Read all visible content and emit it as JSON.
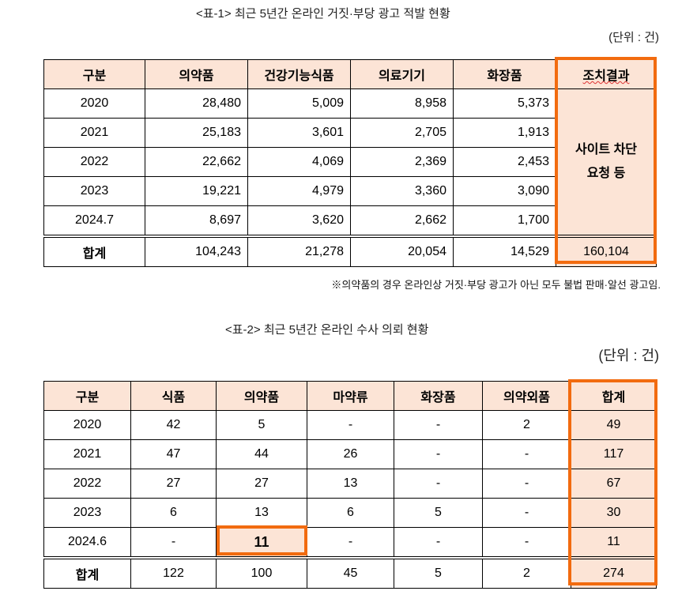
{
  "table1": {
    "caption": "<표-1> 최근 5년간 온라인 거짓·부당 광고 적발 현황",
    "unit": "(단위 : 건)",
    "headers": [
      "구분",
      "의약품",
      "건강기능식품",
      "의료기기",
      "화장품",
      "조치결과"
    ],
    "rows": [
      [
        "2020",
        "28,480",
        "5,009",
        "8,958",
        "5,373"
      ],
      [
        "2021",
        "25,183",
        "3,601",
        "2,705",
        "1,913"
      ],
      [
        "2022",
        "22,662",
        "4,069",
        "2,369",
        "2,453"
      ],
      [
        "2023",
        "19,221",
        "4,979",
        "3,360",
        "3,090"
      ],
      [
        "2024.7",
        "8,697",
        "3,620",
        "2,662",
        "1,700"
      ]
    ],
    "action_line1": "사이트 차단",
    "action_line2": "요청 등",
    "total": [
      "합계",
      "104,243",
      "21,278",
      "20,054",
      "14,529",
      "160,104"
    ],
    "note": "※의약품의 경우 온라인상 거짓·부당 광고가 아닌 모두 불법 판매·알선 광고임."
  },
  "table2": {
    "caption": "<표-2> 최근 5년간 온라인 수사 의뢰 현황",
    "unit": "(단위 : 건)",
    "headers": [
      "구분",
      "식품",
      "의약품",
      "마약류",
      "화장품",
      "의약외품",
      "합계"
    ],
    "rows": [
      [
        "2020",
        "42",
        "5",
        "-",
        "-",
        "2",
        "49"
      ],
      [
        "2021",
        "47",
        "44",
        "26",
        "-",
        "-",
        "117"
      ],
      [
        "2022",
        "27",
        "27",
        "13",
        "-",
        "-",
        "67"
      ],
      [
        "2023",
        "6",
        "13",
        "6",
        "5",
        "-",
        "30"
      ],
      [
        "2024.6",
        "-",
        "11",
        "-",
        "-",
        "-",
        "11"
      ]
    ],
    "total": [
      "합계",
      "122",
      "100",
      "45",
      "5",
      "2",
      "274"
    ]
  },
  "colors": {
    "highlight": "#f26b0f",
    "header_bg": "#fce4d6"
  }
}
